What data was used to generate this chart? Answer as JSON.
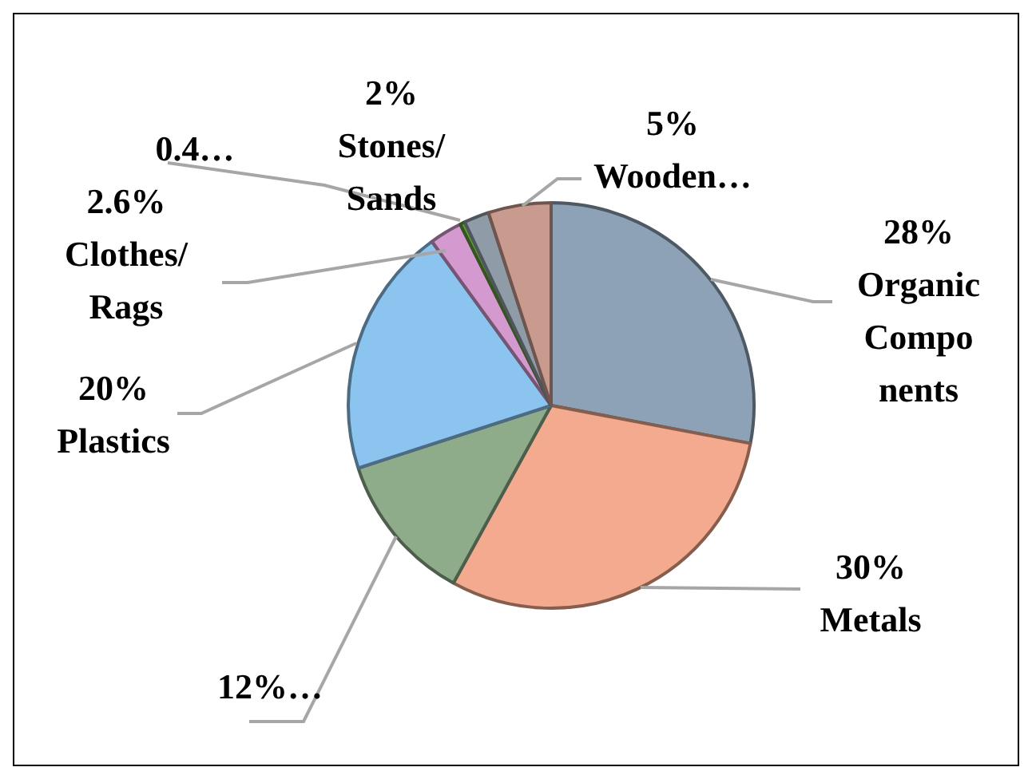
{
  "chart_data": {
    "type": "pie",
    "categories": [
      "Organic Components",
      "Metals",
      null,
      "Plastics",
      "Clothes/ Rags",
      null,
      "Stones/ Sands",
      "Wooden…"
    ],
    "values": [
      28,
      30,
      12,
      20,
      2.6,
      0.4,
      2,
      5
    ],
    "value_labels": [
      "28%",
      "30%",
      "12%…",
      "20%",
      "2.6%",
      "0.4…",
      "2%",
      "5%"
    ],
    "colors": [
      "#8da2b6",
      "#f3aa8e",
      "#8eab8a",
      "#8cc4f0",
      "#d49ad0",
      "#5e9a3c",
      "#8f9ba6",
      "#c99a8e"
    ]
  }
}
